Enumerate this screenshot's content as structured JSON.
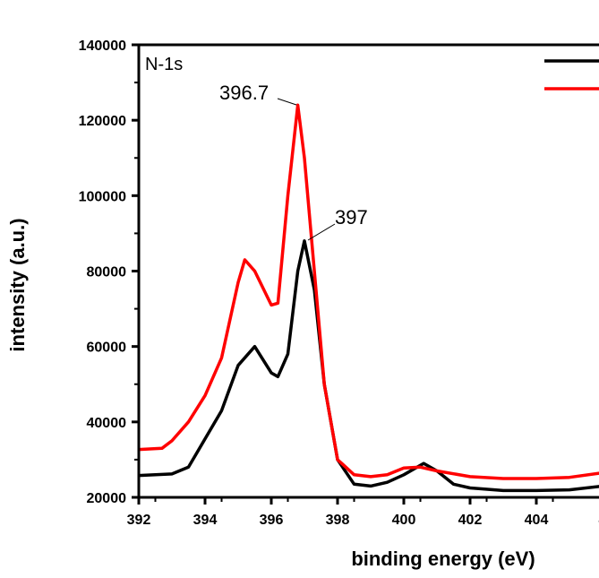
{
  "chart_data": {
    "type": "line",
    "title": "",
    "xlabel": "binding energy (eV)",
    "ylabel": "intensity (a.u.)",
    "xlim": [
      392,
      406
    ],
    "ylim": [
      20000,
      140000
    ],
    "x_ticks": [
      "392",
      "394",
      "396",
      "398",
      "400",
      "402",
      "404",
      "4"
    ],
    "y_ticks": [
      "20000",
      "40000",
      "60000",
      "80000",
      "100000",
      "120000",
      "140000"
    ],
    "grid": false,
    "legend_placement": "top-right",
    "annotations": [
      {
        "text": "N-1s"
      },
      {
        "text": "396.7",
        "x": 396.8,
        "y": 124000
      },
      {
        "text": "397",
        "x": 397.0,
        "y": 88000
      }
    ],
    "series": [
      {
        "color": "#000000",
        "x": [
          392,
          393,
          393.5,
          394,
          394.5,
          395,
          395.5,
          396,
          396.2,
          396.5,
          396.8,
          397,
          397.3,
          397.6,
          398,
          398.5,
          399,
          399.5,
          400,
          400.6,
          401,
          401.5,
          402,
          403,
          404,
          405,
          406
        ],
        "y": [
          25800,
          26200,
          28000,
          35500,
          43000,
          55000,
          60000,
          53000,
          52000,
          58000,
          80000,
          88000,
          75000,
          50000,
          30000,
          23500,
          23000,
          24000,
          26000,
          29000,
          27000,
          23500,
          22500,
          21800,
          21800,
          22000,
          23000
        ]
      },
      {
        "color": "#ff0000",
        "x": [
          392,
          392.7,
          393,
          393.5,
          394,
          394.5,
          395,
          395.2,
          395.5,
          396,
          396.2,
          396.5,
          396.8,
          397,
          397.3,
          397.6,
          398,
          398.5,
          399,
          399.5,
          400,
          400.5,
          401,
          402,
          403,
          404,
          405,
          406
        ],
        "y": [
          32700,
          33000,
          35000,
          40000,
          47000,
          57000,
          77000,
          83000,
          80000,
          71000,
          71500,
          100000,
          124000,
          110000,
          80000,
          50000,
          30000,
          26000,
          25500,
          26000,
          27800,
          28000,
          27000,
          25500,
          25000,
          25000,
          25300,
          26500
        ]
      }
    ]
  }
}
